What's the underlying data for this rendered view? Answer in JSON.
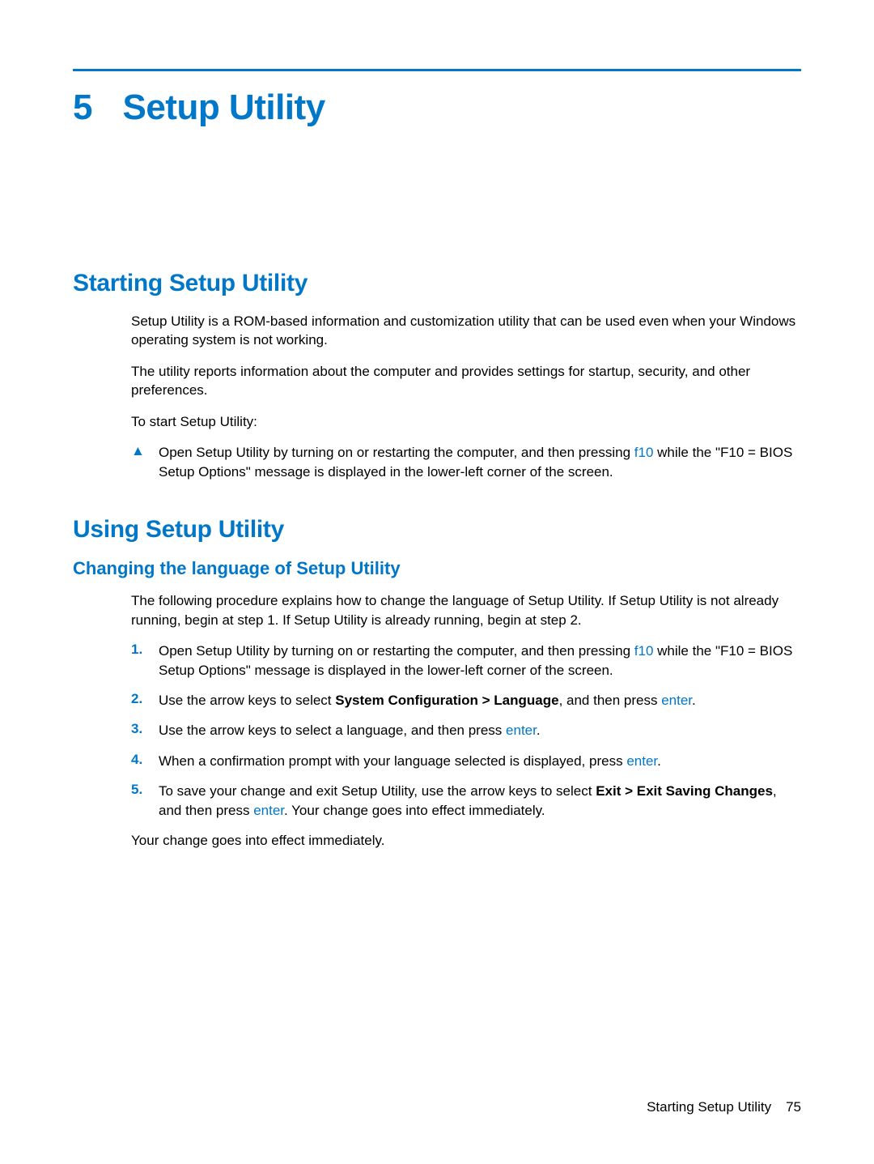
{
  "colors": {
    "accent": "#0077c8",
    "text": "#000000",
    "background": "#ffffff"
  },
  "chapter": {
    "number": "5",
    "title": "Setup Utility"
  },
  "section1": {
    "heading": "Starting Setup Utility",
    "p1": "Setup Utility is a ROM-based information and customization utility that can be used even when your Windows operating system is not working.",
    "p2": "The utility reports information about the computer and provides settings for startup, security, and other preferences.",
    "p3": "To start Setup Utility:",
    "bullet": {
      "marker": "▲",
      "pre": "Open Setup Utility by turning on or restarting the computer, and then pressing ",
      "key": "f10",
      "post": " while the \"F10 = BIOS Setup Options\" message is displayed in the lower-left corner of the screen."
    }
  },
  "section2": {
    "heading": "Using Setup Utility",
    "sub1": {
      "heading": "Changing the language of Setup Utility",
      "intro": "The following procedure explains how to change the language of Setup Utility. If Setup Utility is not already running, begin at step 1. If Setup Utility is already running, begin at step 2.",
      "steps": {
        "s1": {
          "num": "1.",
          "pre": "Open Setup Utility by turning on or restarting the computer, and then pressing ",
          "key": "f10",
          "post": " while the \"F10 = BIOS Setup Options\" message is displayed in the lower-left corner of the screen."
        },
        "s2": {
          "num": "2.",
          "pre": "Use the arrow keys to select ",
          "bold": "System Configuration > Language",
          "mid": ", and then press ",
          "key": "enter",
          "post": "."
        },
        "s3": {
          "num": "3.",
          "pre": "Use the arrow keys to select a language, and then press ",
          "key": "enter",
          "post": "."
        },
        "s4": {
          "num": "4.",
          "pre": "When a confirmation prompt with your language selected is displayed, press ",
          "key": "enter",
          "post": "."
        },
        "s5": {
          "num": "5.",
          "pre": "To save your change and exit Setup Utility, use the arrow keys to select ",
          "bold": "Exit > Exit Saving Changes",
          "mid": ", and then press ",
          "key": "enter",
          "post": ". Your change goes into effect immediately."
        }
      },
      "outro": "Your change goes into effect immediately."
    }
  },
  "footer": {
    "label": "Starting Setup Utility",
    "page": "75"
  }
}
